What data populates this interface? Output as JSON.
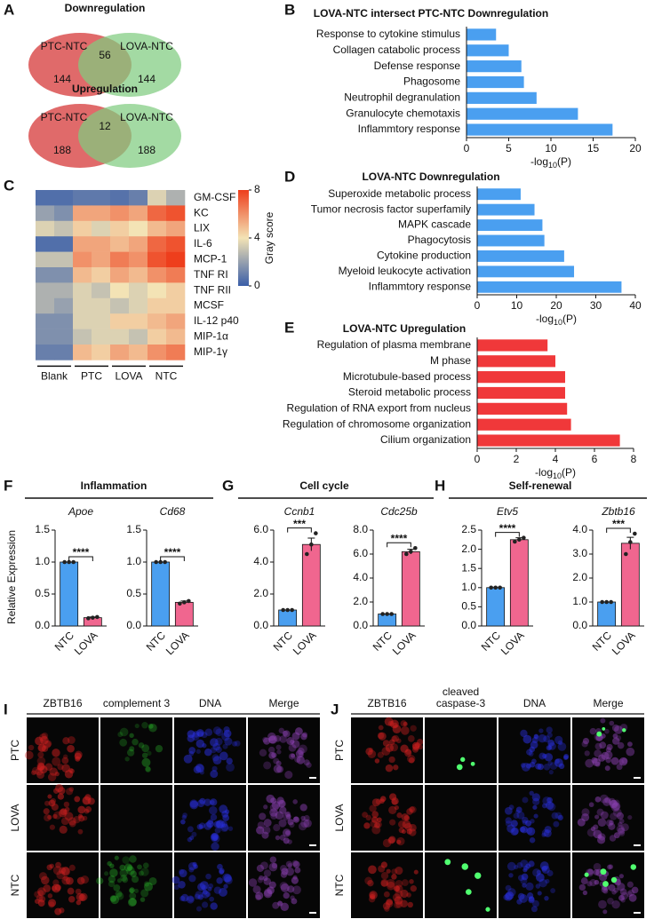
{
  "venn": {
    "letter": "A",
    "diagrams": [
      {
        "title": "Downregulation",
        "sets": [
          "PTC-NTC",
          "LOVA-NTC"
        ],
        "counts": [
          144,
          56,
          144
        ]
      },
      {
        "title": "Upregulation",
        "sets": [
          "PTC-NTC",
          "LOVA-NTC"
        ],
        "counts": [
          188,
          12,
          188
        ]
      }
    ]
  },
  "go_charts": [
    {
      "letter": "B",
      "type": "bar",
      "title": "LOVA-NTC intersect PTC-NTC  Downregulation",
      "categories": [
        "Response to cytokine stimulus",
        "Collagen catabolic process",
        "Defense response",
        "Phagosome",
        "Neutrophil degranulation",
        "Granulocyte chemotaxis",
        "Inflammtory response"
      ],
      "values": [
        3.5,
        5,
        6.5,
        6.8,
        8.3,
        13.2,
        17.3
      ],
      "color": "#4a9ff0",
      "xlim": [
        0,
        20
      ],
      "xticks": [
        0,
        5,
        10,
        15,
        20
      ],
      "xlabel": {
        "text": "-log",
        "sub": "10",
        "tail": "(P)"
      }
    },
    {
      "letter": "D",
      "type": "bar",
      "title": "LOVA-NTC Downregulation",
      "categories": [
        "Superoxide metabolic process",
        "Tumor necrosis factor superfamily",
        "MAPK cascade",
        "Phagocytosis",
        "Cytokine production",
        "Myeloid leukocyte activation",
        "Inflammtory response"
      ],
      "values": [
        11,
        14.5,
        16.5,
        17,
        22,
        24.5,
        36.5
      ],
      "color": "#4a9ff0",
      "xlim": [
        0,
        40
      ],
      "xticks": [
        0,
        10,
        20,
        30,
        40
      ],
      "xlabel": {
        "text": "-log",
        "sub": "10",
        "tail": "(P)"
      }
    },
    {
      "letter": "E",
      "type": "bar",
      "title": "LOVA-NTC Upregulation",
      "categories": [
        "Regulation of plasma membrane",
        "M phase",
        "Microtubule-based process",
        "Steroid metabolic process",
        "Regulation of RNA export from nucleus",
        "Regulation of chromosome organization",
        "Cilium organization"
      ],
      "values": [
        3.6,
        4.0,
        4.5,
        4.5,
        4.6,
        4.8,
        7.3
      ],
      "color": "#f0383a",
      "xlim": [
        0,
        8
      ],
      "xticks": [
        0,
        2,
        4,
        6,
        8
      ],
      "xlabel": {
        "text": "-log",
        "sub": "10",
        "tail": "(P)"
      }
    }
  ],
  "heatmap": {
    "letter": "C",
    "type": "heatmap",
    "rows": [
      "GM-CSF",
      "KC",
      "LIX",
      "IL-6",
      "MCP-1",
      "TNF RI",
      "TNF RII",
      "MCSF",
      "IL-12 p40",
      "MIP-1α",
      "MIP-1γ"
    ],
    "groups": [
      "Blank",
      "PTC",
      "LOVA",
      "NTC"
    ],
    "values": [
      [
        0.5,
        0.5,
        0.8,
        0.8,
        0.6,
        1.0,
        3.5,
        2.5
      ],
      [
        2,
        1.5,
        5.5,
        5.5,
        6,
        5.5,
        7,
        7.5
      ],
      [
        3.5,
        3,
        4.5,
        3.5,
        4.5,
        4,
        5,
        5.5
      ],
      [
        0.5,
        0.5,
        5.5,
        5.5,
        5,
        5.5,
        7,
        7.5
      ],
      [
        3,
        3,
        6,
        5.5,
        6.5,
        6,
        7.5,
        8
      ],
      [
        1.5,
        1.5,
        5,
        4.5,
        5.5,
        5,
        6,
        6.5
      ],
      [
        2.5,
        2.5,
        3.5,
        3,
        4,
        3.5,
        4,
        4.5
      ],
      [
        2.5,
        2,
        3.5,
        3.5,
        3,
        3.5,
        4.5,
        4.5
      ],
      [
        1.5,
        1.5,
        3.5,
        3.5,
        4.5,
        4.5,
        5,
        5.5
      ],
      [
        1.5,
        1.5,
        3,
        3.5,
        3.5,
        3,
        4.5,
        5
      ],
      [
        1,
        1,
        5,
        4.5,
        5.5,
        5,
        6,
        6.5
      ]
    ],
    "colormap": [
      "#3a5ea8",
      "#f3e3b5",
      "#ee3e1c"
    ],
    "clim": [
      0,
      8
    ],
    "cticks": [
      0,
      4,
      8
    ],
    "colorbar_label": "Gray score"
  },
  "qpcr": [
    {
      "letter": "F",
      "title": "Inflammation",
      "ylabel": "Relative Expression",
      "charts": [
        {
          "gene": "Apoe",
          "type": "bar",
          "categories": [
            "NTC",
            "LOVA"
          ],
          "values": [
            1.0,
            0.13
          ],
          "errors": [
            0,
            0.01
          ],
          "points": [
            [
              1,
              1,
              1
            ],
            [
              0.12,
              0.13,
              0.14
            ]
          ],
          "colors": [
            "#4a9ff0",
            "#f0668f"
          ],
          "ylim": [
            0,
            1.5
          ],
          "yticks": [
            {
              "value": 0,
              "label": "0.0"
            },
            {
              "value": 0.5,
              "label": "0.5"
            },
            {
              "value": 1,
              "label": "1.0"
            },
            {
              "value": 1.5,
              "label": "1.5"
            }
          ],
          "significance": "****"
        },
        {
          "gene": "Cd68",
          "type": "bar",
          "categories": [
            "NTC",
            "LOVA"
          ],
          "values": [
            1.0,
            0.37
          ],
          "errors": [
            0,
            0.02
          ],
          "points": [
            [
              1,
              1,
              1
            ],
            [
              0.35,
              0.37,
              0.39
            ]
          ],
          "colors": [
            "#4a9ff0",
            "#f0668f"
          ],
          "ylim": [
            0,
            1.5
          ],
          "yticks": [
            {
              "value": 0,
              "label": "0.0"
            },
            {
              "value": 0.5,
              "label": "0.5"
            },
            {
              "value": 1,
              "label": "1.0"
            },
            {
              "value": 1.5,
              "label": "1.5"
            }
          ],
          "significance": "****"
        }
      ]
    },
    {
      "letter": "G",
      "title": "Cell cycle",
      "charts": [
        {
          "gene": "Ccnb1",
          "type": "bar",
          "categories": [
            "NTC",
            "LOVA"
          ],
          "values": [
            1.0,
            5.1
          ],
          "errors": [
            0,
            0.4
          ],
          "points": [
            [
              1,
              1,
              1
            ],
            [
              4.5,
              5.1,
              5.8
            ]
          ],
          "colors": [
            "#4a9ff0",
            "#f0668f"
          ],
          "ylim": [
            0,
            6
          ],
          "yticks": [
            {
              "value": 0,
              "label": "0.0"
            },
            {
              "value": 2,
              "label": "2.0"
            },
            {
              "value": 4,
              "label": "4.0"
            },
            {
              "value": 6,
              "label": "6.0"
            }
          ],
          "significance": "***"
        },
        {
          "gene": "Cdc25b",
          "type": "bar",
          "categories": [
            "NTC",
            "LOVA"
          ],
          "values": [
            1.0,
            6.2
          ],
          "errors": [
            0,
            0.2
          ],
          "points": [
            [
              1,
              1,
              1
            ],
            [
              6.0,
              6.2,
              6.5
            ]
          ],
          "colors": [
            "#4a9ff0",
            "#f0668f"
          ],
          "ylim": [
            0,
            8
          ],
          "yticks": [
            {
              "value": 0,
              "label": "0.0"
            },
            {
              "value": 2,
              "label": "2.0"
            },
            {
              "value": 4,
              "label": "4.0"
            },
            {
              "value": 6,
              "label": "6.0"
            },
            {
              "value": 8,
              "label": "8.0"
            }
          ],
          "significance": "****"
        }
      ]
    },
    {
      "letter": "H",
      "title": "Self-renewal",
      "charts": [
        {
          "gene": "Etv5",
          "type": "bar",
          "categories": [
            "NTC",
            "LOVA"
          ],
          "values": [
            1.0,
            2.25
          ],
          "errors": [
            0,
            0.05
          ],
          "points": [
            [
              1,
              1,
              1
            ],
            [
              2.2,
              2.25,
              2.3
            ]
          ],
          "colors": [
            "#4a9ff0",
            "#f0668f"
          ],
          "ylim": [
            0,
            2.5
          ],
          "yticks": [
            {
              "value": 0,
              "label": "0.0"
            },
            {
              "value": 0.5,
              "label": "0.5"
            },
            {
              "value": 1,
              "label": "1.0"
            },
            {
              "value": 1.5,
              "label": "1.5"
            },
            {
              "value": 2,
              "label": "2.0"
            },
            {
              "value": 2.5,
              "label": "2.5"
            }
          ],
          "significance": "****"
        },
        {
          "gene": "Zbtb16",
          "type": "bar",
          "categories": [
            "NTC",
            "LOVA"
          ],
          "values": [
            1.0,
            3.45
          ],
          "errors": [
            0,
            0.25
          ],
          "points": [
            [
              1,
              1,
              1
            ],
            [
              3.0,
              3.5,
              3.85
            ]
          ],
          "colors": [
            "#4a9ff0",
            "#f0668f"
          ],
          "ylim": [
            0,
            4
          ],
          "yticks": [
            {
              "value": 0,
              "label": "0.0"
            },
            {
              "value": 1,
              "label": "1.0"
            },
            {
              "value": 2,
              "label": "2.0"
            },
            {
              "value": 3,
              "label": "3.0"
            },
            {
              "value": 4,
              "label": "4.0"
            }
          ],
          "significance": "***"
        }
      ]
    }
  ],
  "images": [
    {
      "letter": "I",
      "columns": [
        {
          "lines": [
            "ZBTB16"
          ],
          "color": "#e02424"
        },
        {
          "lines": [
            "complement 3"
          ],
          "color": "#22a822"
        },
        {
          "lines": [
            "DNA"
          ],
          "color": "#2222dd"
        },
        {
          "lines": [
            "Merge"
          ],
          "color": "#111111"
        }
      ],
      "rows": [
        "PTC",
        "LOVA",
        "NTC"
      ]
    },
    {
      "letter": "J",
      "columns": [
        {
          "lines": [
            "ZBTB16"
          ],
          "color": "#e02424"
        },
        {
          "lines": [
            "cleaved",
            "caspase-3"
          ],
          "color": "#22a822"
        },
        {
          "lines": [
            "DNA"
          ],
          "color": "#2222dd"
        },
        {
          "lines": [
            "Merge"
          ],
          "color": "#111111"
        }
      ],
      "rows": [
        "PTC",
        "LOVA",
        "NTC"
      ]
    }
  ]
}
